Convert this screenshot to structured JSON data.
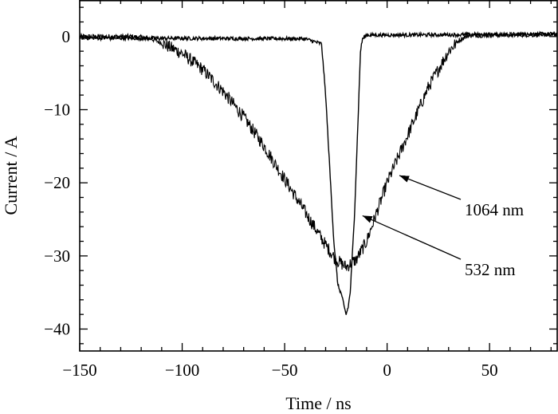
{
  "chart_data": {
    "type": "line",
    "xlabel": "Time / ns",
    "ylabel": "Current / A",
    "xlim": [
      -150,
      83
    ],
    "ylim": [
      -43,
      5
    ],
    "x_ticks": [
      -150,
      -100,
      -50,
      0,
      50
    ],
    "y_ticks": [
      0,
      -10,
      -20,
      -30,
      -40
    ],
    "x_tick_labels": [
      "−150",
      "−100",
      "−50",
      "0",
      "50"
    ],
    "y_tick_labels": [
      "0",
      "−10",
      "−20",
      "−30",
      "−40"
    ],
    "grid": false,
    "legend": "none",
    "line_color": "#000000",
    "series": [
      {
        "name": "1064 nm",
        "x": [
          -150,
          -125,
          -115,
          -110,
          -100,
          -90,
          -80,
          -70,
          -60,
          -50,
          -40,
          -30,
          -25,
          -20,
          -15,
          -10,
          -5,
          0,
          10,
          20,
          30,
          35,
          40,
          50,
          83
        ],
        "y": [
          0,
          0,
          -0.3,
          -0.9,
          -2.3,
          -4.5,
          -7.5,
          -11,
          -15,
          -19.5,
          -24,
          -28.5,
          -30.5,
          -31.5,
          -30.5,
          -28,
          -24,
          -20,
          -13.5,
          -7,
          -2,
          -0.5,
          0.2,
          0.2,
          0.3
        ]
      },
      {
        "name": "532 nm",
        "x": [
          -150,
          -40,
          -32,
          -30,
          -28,
          -26,
          -24,
          -22,
          -21,
          -20,
          -19,
          -18,
          -16,
          -14,
          -13,
          -12,
          -10,
          83
        ],
        "y": [
          -0.2,
          -0.3,
          -1,
          -8,
          -18,
          -28,
          -34,
          -35.5,
          -37,
          -38,
          -37,
          -35,
          -25,
          -10,
          -2,
          -0.3,
          0.2,
          0.3
        ]
      }
    ],
    "annotations": [
      {
        "text": "1064 nm",
        "points_to": [
          6,
          -19
        ]
      },
      {
        "text": "532 nm",
        "points_to": [
          -12,
          -24.5
        ]
      }
    ]
  }
}
